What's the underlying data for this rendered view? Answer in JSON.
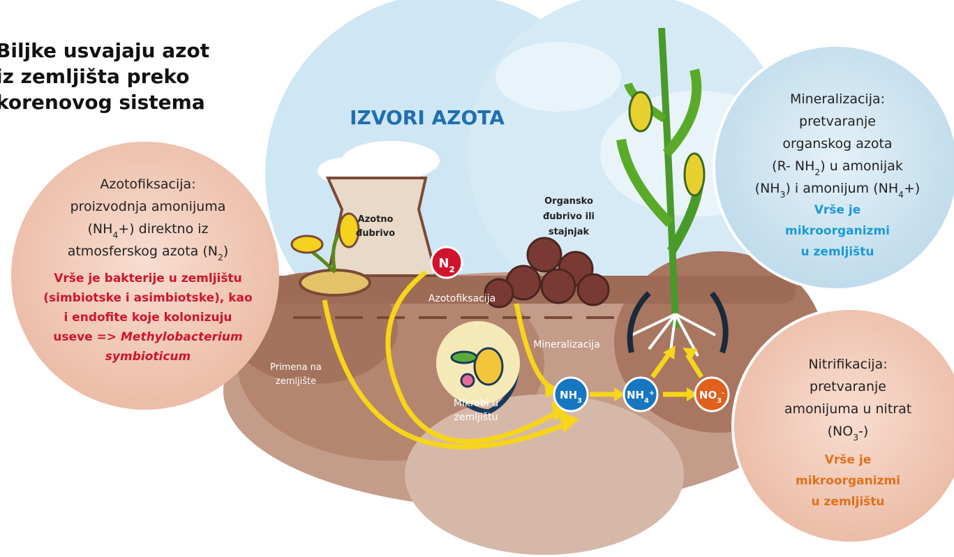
{
  "title": {
    "lines": [
      "Biljke usvajaju azot",
      "iz zemljišta preko",
      "korenovog sistema"
    ]
  },
  "heading": "IZVORI AZOTA",
  "azotofiksacija": {
    "lines": [
      [
        {
          "t": "Azotofiksacija:"
        }
      ],
      [
        {
          "t": "proizvodnja amonijuma"
        }
      ],
      [
        {
          "t": "(NH"
        },
        {
          "sub": "4"
        },
        {
          "t": "+) direktno iz"
        }
      ],
      [
        {
          "t": "atmosferskog azota (N"
        },
        {
          "sub": "2"
        },
        {
          "t": ")"
        }
      ]
    ],
    "emphasis": [
      [
        {
          "t": "Vrše je bakterije u zemljištu"
        }
      ],
      [
        {
          "t": "(simbiotske i asimbiotske), kao"
        }
      ],
      [
        {
          "t": "i endofite koje kolonizuju"
        }
      ],
      [
        {
          "t": "useve => "
        },
        {
          "i": "Methylobacterium"
        }
      ],
      [
        {
          "i": "symbioticum"
        }
      ]
    ]
  },
  "mineralizacija": {
    "lines": [
      [
        {
          "t": "Mineralizacija:"
        }
      ],
      [
        {
          "t": "pretvaranje"
        }
      ],
      [
        {
          "t": "organskog azota"
        }
      ],
      [
        {
          "t": "(R- NH"
        },
        {
          "sub": "2"
        },
        {
          "t": ") u amonijak"
        }
      ],
      [
        {
          "t": "(NH"
        },
        {
          "sub": "3"
        },
        {
          "t": ") i amonijum (NH"
        },
        {
          "sub": "4"
        },
        {
          "t": "+)"
        }
      ]
    ],
    "emphasis": [
      [
        {
          "t": "Vrše je"
        }
      ],
      [
        {
          "t": "mikroorganizmi"
        }
      ],
      [
        {
          "t": "u zemljištu"
        }
      ]
    ]
  },
  "nitrifikacija": {
    "lines": [
      [
        {
          "t": "Nitrifikacija:"
        }
      ],
      [
        {
          "t": "pretvaranje"
        }
      ],
      [
        {
          "t": "amonijuma u nitrat"
        }
      ],
      [
        {
          "t": "(NO"
        },
        {
          "sub": "3"
        },
        {
          "t": "-)"
        }
      ]
    ],
    "emphasis": [
      [
        {
          "t": "Vrše je"
        }
      ],
      [
        {
          "t": "mikroorganizmi"
        }
      ],
      [
        {
          "t": "u zemljištu"
        }
      ]
    ]
  },
  "labels": {
    "azotno_dubrivo": [
      [
        {
          "t": "Azotno"
        }
      ],
      [
        {
          "t": "đubrivo"
        }
      ]
    ],
    "organsko_dubrivo": [
      [
        {
          "t": "Organsko"
        }
      ],
      [
        {
          "t": "đubrivo ili"
        }
      ],
      [
        {
          "t": "stajnjak"
        }
      ]
    ],
    "azotofiksacija": [
      [
        {
          "t": "Azotofiksacija"
        }
      ]
    ],
    "mineralizacija": [
      [
        {
          "t": "Mineralizacija"
        }
      ]
    ],
    "primena": [
      [
        {
          "t": "Primena na"
        }
      ],
      [
        {
          "t": "zemljište"
        }
      ]
    ],
    "mikrobi": [
      [
        {
          "t": "Mikrobi u"
        }
      ],
      [
        {
          "t": "zemljištu"
        }
      ]
    ]
  },
  "badges": {
    "n2": [
      [
        {
          "t": "N"
        },
        {
          "sub": "2"
        }
      ]
    ],
    "nh3": [
      [
        {
          "t": "NH"
        },
        {
          "sub": "3"
        }
      ]
    ],
    "nh4": [
      [
        {
          "t": "NH"
        },
        {
          "sub": "4"
        },
        {
          "sup": "+"
        }
      ]
    ],
    "no3": [
      [
        {
          "t": "NO"
        },
        {
          "sub": "3"
        },
        {
          "sup": "-"
        }
      ]
    ]
  }
}
